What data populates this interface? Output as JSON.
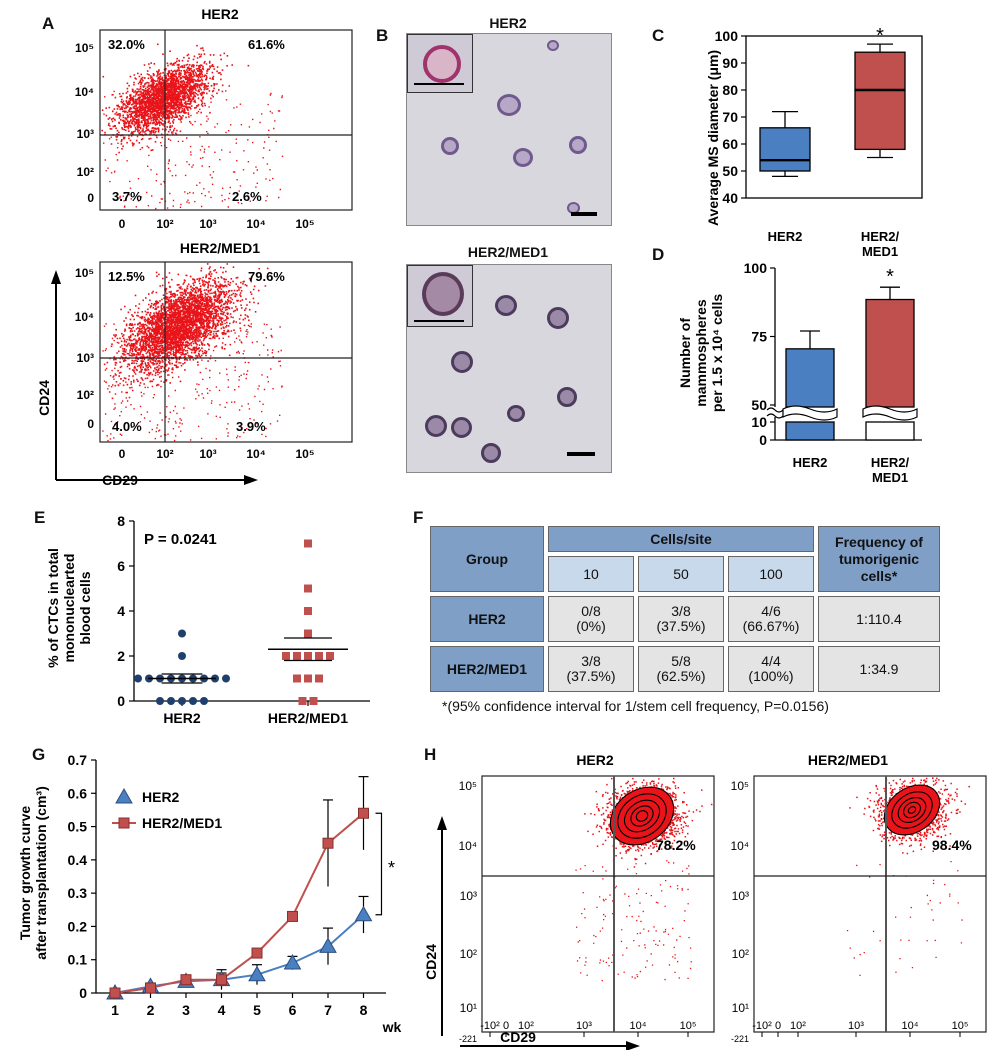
{
  "panels": {
    "A": "A",
    "B": "B",
    "C": "C",
    "D": "D",
    "E": "E",
    "F": "F",
    "G": "G",
    "H": "H"
  },
  "panelA": {
    "plots": [
      {
        "title": "HER2",
        "q": {
          "ul": "32.0%",
          "ur": "61.6%",
          "ll": "3.7%",
          "lr": "2.6%"
        }
      },
      {
        "title": "HER2/MED1",
        "q": {
          "ul": "12.5%",
          "ur": "79.6%",
          "ll": "4.0%",
          "lr": "3.9%"
        }
      }
    ],
    "yticks": [
      "10⁵",
      "10⁴",
      "10³",
      "10²",
      "0"
    ],
    "xticks": [
      "0",
      "10²",
      "10³",
      "10⁴",
      "10⁵"
    ],
    "ylabel": "CD24",
    "xlabel": "CD29",
    "point_color": "#e8141a"
  },
  "panelB": {
    "titles": [
      "HER2",
      "HER2/MED1"
    ]
  },
  "chart_data": [
    {
      "panel": "C",
      "type": "box",
      "ylabel": "Average MS diameter (μm)",
      "ylim": [
        40,
        100
      ],
      "yticks": [
        "40",
        "50",
        "60",
        "70",
        "80",
        "90",
        "100"
      ],
      "categories": [
        "HER2",
        "HER2/MED1"
      ],
      "boxes": [
        {
          "min": 48,
          "q1": 50,
          "median": 54,
          "q3": 66,
          "max": 72,
          "color": "#4a7fc1"
        },
        {
          "min": 55,
          "q1": 58,
          "median": 80,
          "q3": 94,
          "max": 97,
          "color": "#c0504d"
        }
      ],
      "annotation": "*"
    },
    {
      "panel": "D",
      "type": "bar",
      "ylabel_lines": [
        "Number of",
        "mammospheres",
        "per 1.5 x 10⁴ cells"
      ],
      "ylim": [
        0,
        100
      ],
      "yticks": [
        "100",
        "75",
        "50",
        "10",
        "0"
      ],
      "axis_break": true,
      "categories": [
        "HER2",
        "HER2/MED1"
      ],
      "values": [
        70.5,
        88.5
      ],
      "errors": [
        6.5,
        4.5
      ],
      "colors": [
        "#4a7fc1",
        "#c0504d"
      ],
      "annotation": "*"
    },
    {
      "panel": "E",
      "type": "scatter",
      "ylabel_lines": [
        "% of CTCs in total",
        "mononuclearted",
        "blood cells"
      ],
      "ylim": [
        0,
        8
      ],
      "yticks": [
        "0",
        "2",
        "4",
        "6",
        "8"
      ],
      "categories": [
        "HER2",
        "HER2/MED1"
      ],
      "series": [
        {
          "name": "HER2",
          "values": [
            3,
            2,
            1,
            1,
            1,
            1,
            1,
            1,
            1,
            1,
            1,
            0,
            0,
            0,
            0,
            0
          ],
          "mean": 1.0,
          "sem_lo": 0.8,
          "sem_hi": 1.2,
          "color": "#1f3f6e",
          "marker": "circle"
        },
        {
          "name": "HER2/MED1",
          "values": [
            7,
            5,
            4,
            3,
            2,
            2,
            2,
            2,
            2,
            1,
            1,
            1,
            0,
            0
          ],
          "mean": 2.3,
          "sem_lo": 1.8,
          "sem_hi": 2.8,
          "color": "#c0504d",
          "marker": "square"
        }
      ],
      "annotation": "P = 0.0241"
    },
    {
      "panel": "G",
      "type": "line",
      "ylabel_lines": [
        "Tumor growth curve",
        "after transplantation (cm³)"
      ],
      "ylim": [
        0,
        0.7
      ],
      "yticks": [
        "0",
        "0.1",
        "0.2",
        "0.3",
        "0.4",
        "0.5",
        "0.6",
        "0.7"
      ],
      "x": [
        1,
        2,
        3,
        4,
        5,
        6,
        7,
        8
      ],
      "xticks": [
        "1",
        "2",
        "3",
        "4",
        "5",
        "6",
        "7",
        "8"
      ],
      "xunit": "wk",
      "series": [
        {
          "name": "HER2",
          "values": [
            0.0,
            0.02,
            0.035,
            0.04,
            0.055,
            0.09,
            0.14,
            0.235
          ],
          "errors": [
            0.01,
            0.01,
            0.01,
            0.03,
            0.03,
            0.02,
            0.055,
            0.055
          ],
          "color": "#4a7fc1",
          "marker": "triangle"
        },
        {
          "name": "HER2/MED1",
          "values": [
            0.0,
            0.015,
            0.04,
            0.04,
            0.12,
            0.23,
            0.45,
            0.54
          ],
          "errors": [
            0.01,
            0.01,
            0.01,
            0.02,
            0.01,
            0.01,
            0.13,
            0.11
          ],
          "color": "#c0504d",
          "marker": "square"
        }
      ],
      "annotation": "*"
    }
  ],
  "panelF": {
    "group_header": "Group",
    "cells_header": "Cells/site",
    "freq_header": "Frequency of tumorigenic cells*",
    "doses": [
      "10",
      "50",
      "100"
    ],
    "rows": [
      {
        "group": "HER2",
        "cells": [
          [
            "0/8",
            "(0%)"
          ],
          [
            "3/8",
            "(37.5%)"
          ],
          [
            "4/6",
            "(66.67%)"
          ]
        ],
        "freq": "1:110.4"
      },
      {
        "group": "HER2/MED1",
        "cells": [
          [
            "3/8",
            "(37.5%)"
          ],
          [
            "5/8",
            "(62.5%)"
          ],
          [
            "4/4",
            "(100%)"
          ]
        ],
        "freq": "1:34.9"
      }
    ],
    "footnote": "*(95% confidence interval for 1/stem cell frequency, P=0.0156)"
  },
  "panelH": {
    "plots": [
      {
        "title": "HER2",
        "pct": "78.2%"
      },
      {
        "title": "HER2/MED1",
        "pct": "98.4%"
      }
    ],
    "yticks": [
      "10⁵",
      "10⁴",
      "10³",
      "10²",
      "10¹"
    ],
    "xticks": [
      "-10²",
      "0",
      "10²",
      "10³",
      "10⁴",
      "10⁵"
    ],
    "corner": "-221",
    "ylabel": "CD24",
    "xlabel": "CD29"
  }
}
